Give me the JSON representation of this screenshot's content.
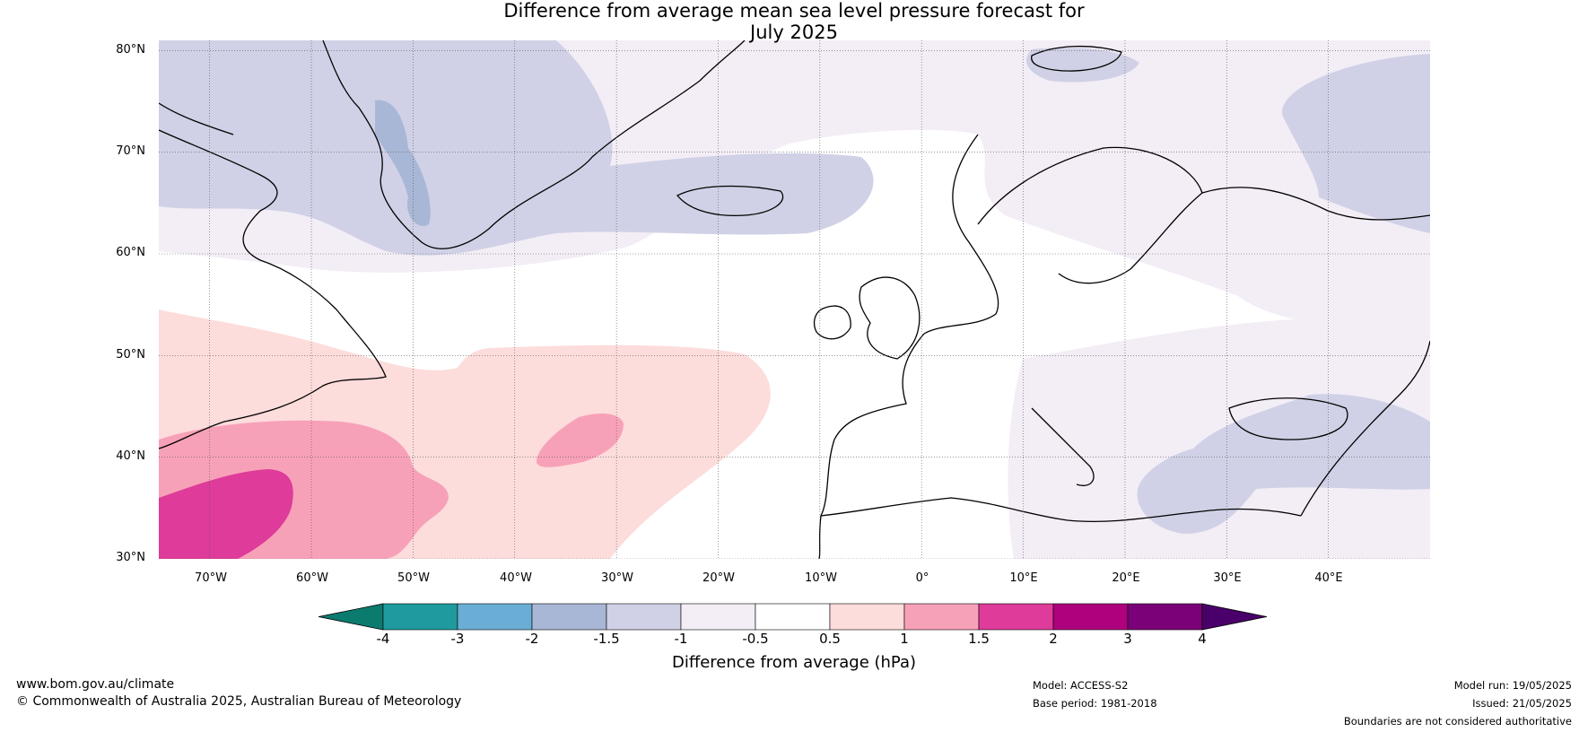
{
  "header": {
    "title_line1": "Difference from average mean sea level pressure forecast for",
    "title_line2": "July 2025"
  },
  "axes": {
    "lat_labels": [
      "80°N",
      "70°N",
      "60°N",
      "50°N",
      "40°N",
      "30°N"
    ],
    "lon_labels": [
      "70°W",
      "60°W",
      "50°W",
      "40°W",
      "30°W",
      "20°W",
      "10°W",
      "0°",
      "10°E",
      "20°E",
      "30°E",
      "40°E"
    ]
  },
  "colorbar": {
    "title": "Difference from average (hPa)",
    "ticks": [
      "-4",
      "-3",
      "-2",
      "-1.5",
      "-1",
      "-0.5",
      "0.5",
      "1",
      "1.5",
      "2",
      "3",
      "4"
    ],
    "colors": [
      "#0b7b6f",
      "#1f9a9e",
      "#6aaed6",
      "#a9b7d6",
      "#d0d1e6",
      "#f3edf6",
      "#ffffff",
      "#fddcdc",
      "#f7a1b8",
      "#de3b9a",
      "#ae017e",
      "#7a0177",
      "#49006a"
    ]
  },
  "footer": {
    "website": "www.bom.gov.au/climate",
    "copyright": "© Commonwealth of Australia 2025, Australian Bureau of Meteorology",
    "model": "Model: ACCESS-S2",
    "base_period": "Base period: 1981-2018",
    "model_run": "Model run: 19/05/2025",
    "issued": "Issued: 21/05/2025",
    "disclaimer": "Boundaries are not considered authoritative"
  },
  "map_data": {
    "extent": {
      "lon_min": -75,
      "lon_max": 50,
      "lat_min": 30,
      "lat_max": 81
    },
    "grid_lons": [
      -70,
      -60,
      -50,
      -40,
      -30,
      -20,
      -10,
      0,
      10,
      20,
      30,
      40
    ],
    "grid_lats": [
      30,
      40,
      50,
      60,
      70,
      80
    ]
  }
}
